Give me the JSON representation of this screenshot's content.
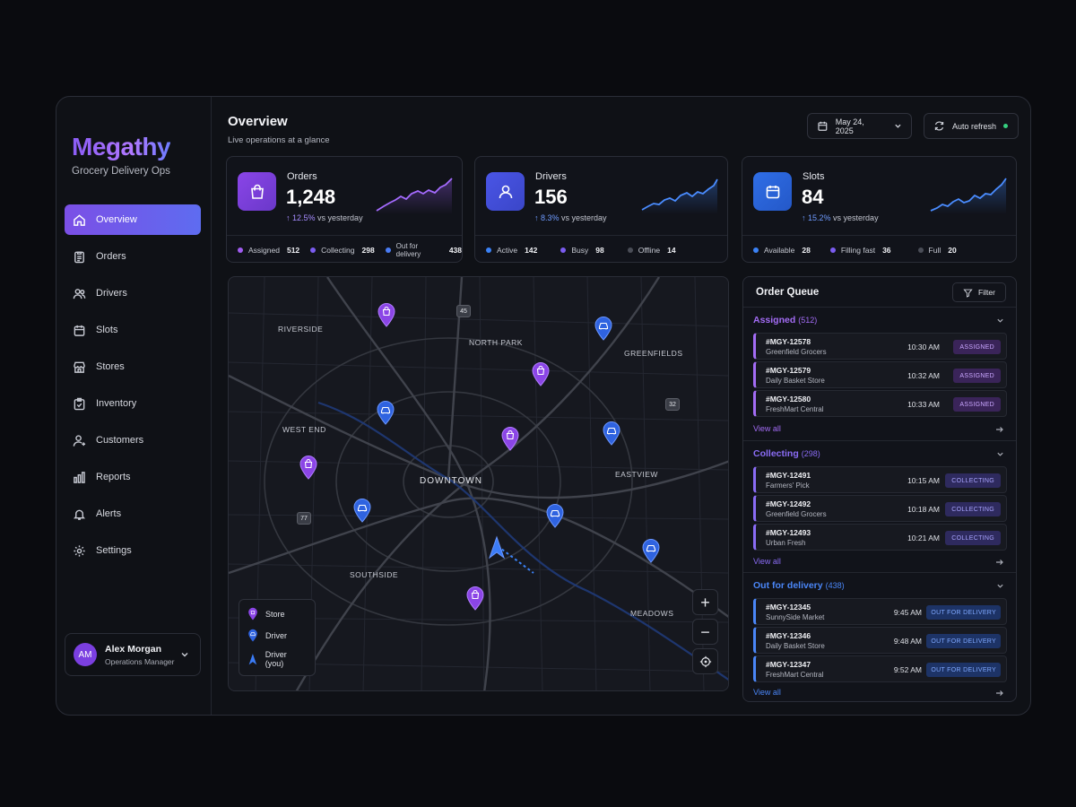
{
  "brand": {
    "name": "Megathy",
    "subtitle": "Grocery Delivery Ops"
  },
  "nav": [
    {
      "label": "Overview",
      "icon": "home-icon",
      "active": true
    },
    {
      "label": "Orders",
      "icon": "clipboard-icon"
    },
    {
      "label": "Drivers",
      "icon": "users-icon"
    },
    {
      "label": "Slots",
      "icon": "calendar-icon"
    },
    {
      "label": "Stores",
      "icon": "store-icon"
    },
    {
      "label": "Inventory",
      "icon": "inventory-icon"
    },
    {
      "label": "Customers",
      "icon": "customers-icon"
    },
    {
      "label": "Reports",
      "icon": "bar-chart-icon"
    },
    {
      "label": "Alerts",
      "icon": "bell-icon"
    },
    {
      "label": "Settings",
      "icon": "gear-icon"
    }
  ],
  "user": {
    "initials": "AM",
    "name": "Alex Morgan",
    "role": "Operations Manager"
  },
  "header": {
    "title": "Overview",
    "subtitle": "Live operations at a glance",
    "date": "May 24, 2025",
    "refresh": "Auto refresh"
  },
  "cards": {
    "orders": {
      "label": "Orders",
      "value": "1,248",
      "delta": "↑ 12.5%",
      "delta_suffix": "vs yesterday",
      "stats": [
        {
          "label": "Assigned",
          "value": "512",
          "color": "#a05cf0"
        },
        {
          "label": "Collecting",
          "value": "298",
          "color": "#7b5cf0"
        },
        {
          "label": "Out for delivery",
          "value": "438",
          "color": "#4a7cf5"
        }
      ]
    },
    "drivers": {
      "label": "Drivers",
      "value": "156",
      "delta": "↑ 8.3%",
      "delta_suffix": "vs yesterday",
      "stats": [
        {
          "label": "Active",
          "value": "142",
          "color": "#3b82f6"
        },
        {
          "label": "Busy",
          "value": "98",
          "color": "#7b5cf0"
        },
        {
          "label": "Offline",
          "value": "14",
          "color": "#4a4d57"
        }
      ]
    },
    "slots": {
      "label": "Slots",
      "value": "84",
      "delta": "↑ 15.2%",
      "delta_suffix": "vs yesterday",
      "stats": [
        {
          "label": "Available",
          "value": "28",
          "color": "#3b82f6"
        },
        {
          "label": "Filling fast",
          "value": "36",
          "color": "#7b5cf0"
        },
        {
          "label": "Full",
          "value": "20",
          "color": "#4a4d57"
        }
      ]
    }
  },
  "map": {
    "areas": [
      "RIVERSIDE",
      "NORTH PARK",
      "GREENFIELDS",
      "WEST END",
      "DOWNTOWN",
      "EASTVIEW",
      "SOUTHSIDE",
      "MEADOWS"
    ],
    "highways": [
      "45",
      "32",
      "77"
    ],
    "legend": {
      "store": "Store",
      "driver": "Driver",
      "you": "Driver (you)"
    },
    "zoom_in": "+",
    "zoom_out": "−"
  },
  "queue": {
    "title": "Order Queue",
    "filter": "Filter",
    "view_all": "View all",
    "sections": [
      {
        "name": "Assigned",
        "count": "(512)",
        "color": "#a36cf5",
        "badge_bg": "#3a2459",
        "badge_fg": "#c9a6ff",
        "orders": [
          {
            "id": "#MGY-12578",
            "store": "Greenfield Grocers",
            "time": "10:30 AM",
            "status": "ASSIGNED"
          },
          {
            "id": "#MGY-12579",
            "store": "Daily Basket Store",
            "time": "10:32 AM",
            "status": "ASSIGNED"
          },
          {
            "id": "#MGY-12580",
            "store": "FreshMart Central",
            "time": "10:33 AM",
            "status": "ASSIGNED"
          }
        ]
      },
      {
        "name": "Collecting",
        "count": "(298)",
        "color": "#8a6cf5",
        "badge_bg": "#2e2a5e",
        "badge_fg": "#a9a4ff",
        "orders": [
          {
            "id": "#MGY-12491",
            "store": "Farmers' Pick",
            "time": "10:15 AM",
            "status": "COLLECTING"
          },
          {
            "id": "#MGY-12492",
            "store": "Greenfield Grocers",
            "time": "10:18 AM",
            "status": "COLLECTING"
          },
          {
            "id": "#MGY-12493",
            "store": "Urban Fresh",
            "time": "10:21 AM",
            "status": "COLLECTING"
          }
        ]
      },
      {
        "name": "Out for delivery",
        "count": "(438)",
        "color": "#4a86f7",
        "badge_bg": "#1d3366",
        "badge_fg": "#7fa8ff",
        "orders": [
          {
            "id": "#MGY-12345",
            "store": "SunnySide Market",
            "time": "9:45 AM",
            "status": "OUT FOR DELIVERY"
          },
          {
            "id": "#MGY-12346",
            "store": "Daily Basket Store",
            "time": "9:48 AM",
            "status": "OUT FOR DELIVERY"
          },
          {
            "id": "#MGY-12347",
            "store": "FreshMart Central",
            "time": "9:52 AM",
            "status": "OUT FOR DELIVERY"
          }
        ]
      }
    ]
  }
}
